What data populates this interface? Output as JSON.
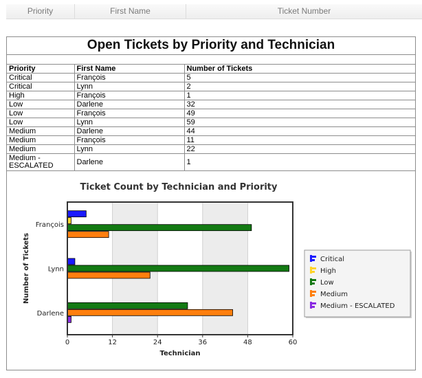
{
  "header": {
    "columns": [
      "Priority",
      "First Name",
      "Ticket Number"
    ]
  },
  "report": {
    "title": "Open Tickets by Priority and Technician",
    "table": {
      "headers": [
        "Priority",
        "First Name",
        "Number of Tickets"
      ],
      "rows": [
        [
          "Critical",
          "François",
          "5"
        ],
        [
          "Critical",
          "Lynn",
          "2"
        ],
        [
          "High",
          "François",
          "1"
        ],
        [
          "Low",
          "Darlene",
          "32"
        ],
        [
          "Low",
          "François",
          "49"
        ],
        [
          "Low",
          "Lynn",
          "59"
        ],
        [
          "Medium",
          "Darlene",
          "44"
        ],
        [
          "Medium",
          "François",
          "11"
        ],
        [
          "Medium",
          "Lynn",
          "22"
        ],
        [
          "Medium - ESCALATED",
          "Darlene",
          "1"
        ]
      ]
    }
  },
  "chart_data": {
    "type": "bar",
    "orientation": "horizontal",
    "title": "Ticket Count by Technician and Priority",
    "xlabel": "Technician",
    "ylabel": "Number of Tickets",
    "xlim": [
      0,
      60
    ],
    "xticks": [
      0,
      12,
      24,
      36,
      48,
      60
    ],
    "categories": [
      "François",
      "Lynn",
      "Darlene"
    ],
    "series": [
      {
        "name": "Critical",
        "color": "#1a1aff",
        "values": [
          5,
          2,
          0
        ]
      },
      {
        "name": "High",
        "color": "#ffd42a",
        "values": [
          1,
          0,
          0
        ]
      },
      {
        "name": "Low",
        "color": "#137a13",
        "values": [
          49,
          59,
          32
        ]
      },
      {
        "name": "Medium",
        "color": "#ff7f0e",
        "values": [
          11,
          22,
          44
        ]
      },
      {
        "name": "Medium - ESCALATED",
        "color": "#8a2be2",
        "values": [
          0,
          0,
          1
        ]
      }
    ],
    "legend": "right",
    "alternating_bands": true
  }
}
